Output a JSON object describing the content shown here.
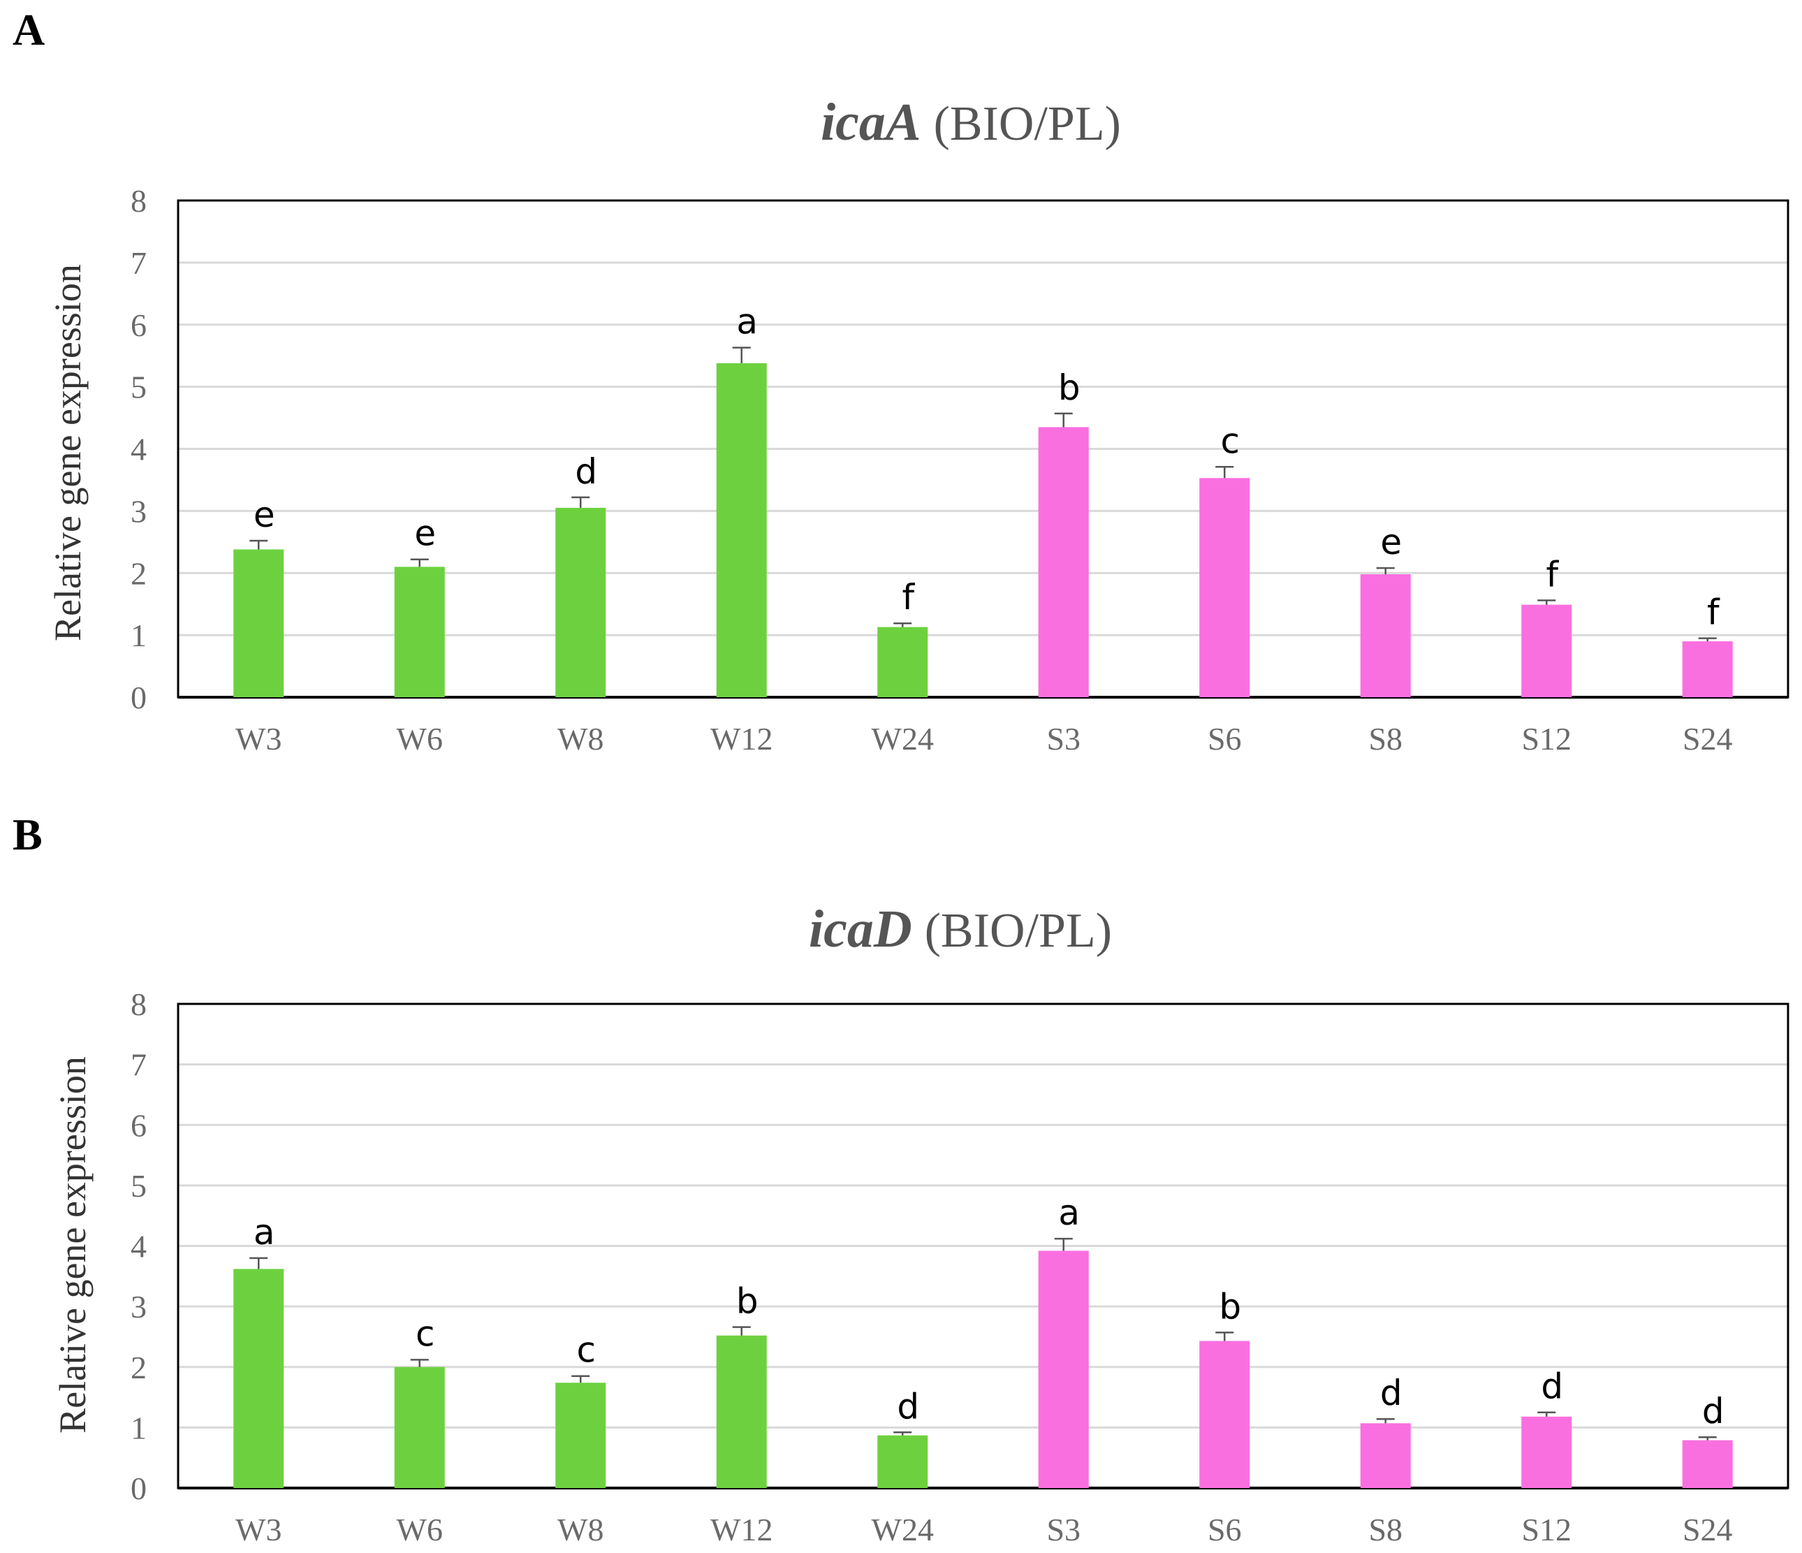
{
  "figure": {
    "panels": [
      "A",
      "B"
    ]
  },
  "chart_data": [
    {
      "type": "bar",
      "panel": "A",
      "title_gene": "icaA",
      "title_rest": "(BIO/PL)",
      "xlabel": "",
      "ylabel": "Relative gene expression",
      "ylim": [
        0,
        8
      ],
      "yticks": [
        0,
        1,
        2,
        3,
        4,
        5,
        6,
        7,
        8
      ],
      "grid": true,
      "categories": [
        "W3",
        "W6",
        "W8",
        "W12",
        "W24",
        "S3",
        "S6",
        "S8",
        "S12",
        "S24"
      ],
      "values": [
        2.38,
        2.1,
        3.05,
        5.38,
        1.13,
        4.35,
        3.53,
        1.98,
        1.49,
        0.9
      ],
      "errors": [
        0.14,
        0.12,
        0.17,
        0.25,
        0.06,
        0.22,
        0.18,
        0.1,
        0.07,
        0.05
      ],
      "significance": [
        "e",
        "e",
        "d",
        "a",
        "f",
        "b",
        "c",
        "e",
        "f",
        "f"
      ],
      "colors": [
        "#6dd13f",
        "#6dd13f",
        "#6dd13f",
        "#6dd13f",
        "#6dd13f",
        "#fa6fe0",
        "#fa6fe0",
        "#fa6fe0",
        "#fa6fe0",
        "#fa6fe0"
      ]
    },
    {
      "type": "bar",
      "panel": "B",
      "title_gene": "icaD",
      "title_rest": "(BIO/PL)",
      "xlabel": "",
      "ylabel": "Relative gene expression",
      "ylim": [
        0,
        8
      ],
      "yticks": [
        0,
        1,
        2,
        3,
        4,
        5,
        6,
        7,
        8
      ],
      "grid": true,
      "categories": [
        "W3",
        "W6",
        "W8",
        "W12",
        "W24",
        "S3",
        "S6",
        "S8",
        "S12",
        "S24"
      ],
      "values": [
        3.62,
        2.0,
        1.74,
        2.52,
        0.87,
        3.92,
        2.43,
        1.07,
        1.18,
        0.79
      ],
      "errors": [
        0.18,
        0.12,
        0.11,
        0.14,
        0.05,
        0.2,
        0.14,
        0.07,
        0.07,
        0.05
      ],
      "significance": [
        "a",
        "c",
        "c",
        "b",
        "d",
        "a",
        "b",
        "d",
        "d",
        "d"
      ],
      "colors": [
        "#6dd13f",
        "#6dd13f",
        "#6dd13f",
        "#6dd13f",
        "#6dd13f",
        "#fa6fe0",
        "#fa6fe0",
        "#fa6fe0",
        "#fa6fe0",
        "#fa6fe0"
      ]
    }
  ]
}
